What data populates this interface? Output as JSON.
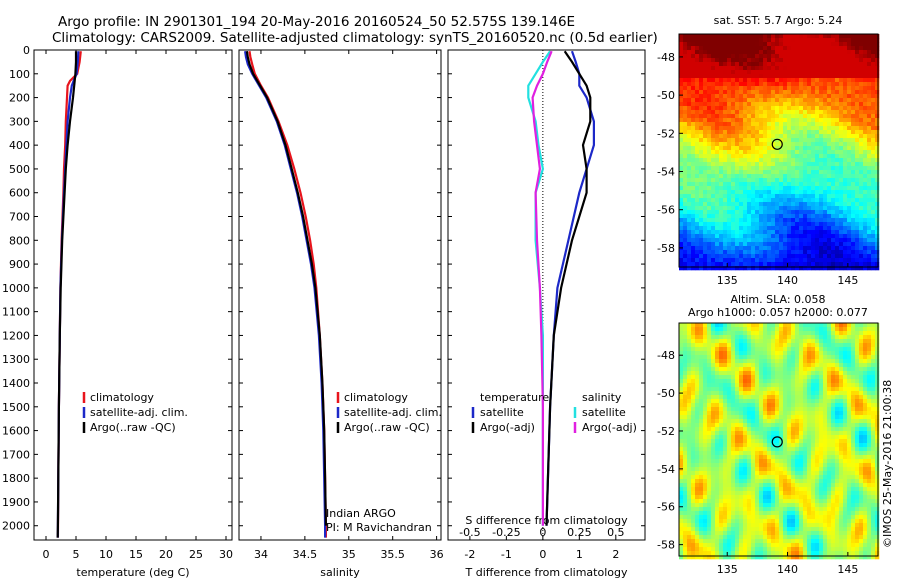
{
  "header": {
    "line1": "Argo profile: IN 2901301_194 20-May-2016 20160524_50 52.575S 139.146E",
    "line2": "Climatology: CARS2009. Satellite-adjusted climatology: synTS_20160520.nc (0.5d earlier)"
  },
  "colors": {
    "climatology": "#e8141c",
    "satellite_adj": "#1c28c8",
    "argo": "#000000",
    "sal_satellite": "#22e0e0",
    "sal_argo": "#e020e0"
  },
  "credit": "©IMOS 25-May-2016 21:00:38",
  "chart_data": [
    {
      "type": "line",
      "panel": "temperature",
      "xlabel": "temperature (deg C)",
      "ylabel": "",
      "xlim": [
        -2,
        31
      ],
      "ylim": [
        2060,
        0
      ],
      "xticks": [
        0,
        5,
        10,
        15,
        20,
        25,
        30
      ],
      "yticks": [
        0,
        100,
        200,
        300,
        400,
        500,
        600,
        700,
        800,
        900,
        1000,
        1100,
        1200,
        1300,
        1400,
        1500,
        1600,
        1700,
        1800,
        1900,
        2000
      ],
      "legend": [
        "climatology",
        "satellite-adj. clim.",
        "Argo(..raw -QC)"
      ],
      "series": [
        {
          "name": "climatology",
          "depth": [
            5,
            50,
            100,
            130,
            150,
            200,
            300,
            400,
            500,
            600,
            800,
            1000,
            1200,
            1500,
            1800,
            2000,
            2050
          ],
          "values": [
            5.8,
            5.6,
            5.2,
            4.0,
            3.6,
            3.5,
            3.3,
            3.2,
            3.0,
            2.9,
            2.6,
            2.4,
            2.3,
            2.15,
            2.05,
            2.0,
            1.98
          ]
        },
        {
          "name": "satellite-adj. clim.",
          "depth": [
            5,
            50,
            100,
            130,
            150,
            200,
            300,
            400,
            500,
            600,
            800,
            1000,
            1200,
            1500,
            1800,
            2000,
            2050
          ],
          "values": [
            5.4,
            5.3,
            5.1,
            4.6,
            4.3,
            4.0,
            3.6,
            3.4,
            3.2,
            3.0,
            2.65,
            2.4,
            2.3,
            2.15,
            2.05,
            1.98,
            1.96
          ]
        },
        {
          "name": "Argo(..raw -QC)",
          "depth": [
            5,
            50,
            100,
            150,
            200,
            300,
            400,
            500,
            600,
            800,
            1000,
            1200,
            1500,
            1800,
            2000,
            2050
          ],
          "values": [
            5.0,
            5.0,
            4.9,
            4.7,
            4.5,
            4.0,
            3.6,
            3.3,
            3.1,
            2.7,
            2.45,
            2.3,
            2.15,
            2.05,
            1.98,
            1.95
          ]
        }
      ]
    },
    {
      "type": "line",
      "panel": "salinity",
      "xlabel": "salinity",
      "xlim": [
        33.75,
        36.05
      ],
      "ylim": [
        2060,
        0
      ],
      "xticks": [
        34,
        34.5,
        35,
        35.5,
        36
      ],
      "legend": [
        "climatology",
        "satellite-adj. clim.",
        "Argo(..raw -QC)"
      ],
      "annotation": [
        "Indian ARGO",
        "PI: M Ravichandran"
      ],
      "series": [
        {
          "name": "climatology",
          "depth": [
            5,
            30,
            60,
            100,
            150,
            200,
            300,
            400,
            500,
            600,
            700,
            800,
            900,
            1000,
            1200,
            1400,
            1600,
            1800,
            2000,
            2050
          ],
          "values": [
            33.87,
            33.88,
            33.9,
            33.93,
            34.0,
            34.08,
            34.2,
            34.3,
            34.38,
            34.45,
            34.51,
            34.56,
            34.6,
            34.63,
            34.67,
            34.7,
            34.72,
            34.73,
            34.74,
            34.74
          ]
        },
        {
          "name": "satellite-adj. clim.",
          "depth": [
            5,
            30,
            60,
            100,
            150,
            200,
            300,
            400,
            500,
            600,
            700,
            800,
            900,
            1000,
            1200,
            1400,
            1600,
            1800,
            2000,
            2050
          ],
          "values": [
            33.82,
            33.83,
            33.85,
            33.9,
            33.98,
            34.06,
            34.18,
            34.27,
            34.34,
            34.41,
            34.47,
            34.52,
            34.57,
            34.61,
            34.66,
            34.69,
            34.71,
            34.72,
            34.73,
            34.73
          ]
        },
        {
          "name": "Argo(..raw -QC)",
          "depth": [
            5,
            30,
            60,
            100,
            150,
            200,
            300,
            400,
            500,
            600,
            700,
            800,
            900,
            1000,
            1200,
            1400,
            1600,
            1800,
            2000
          ],
          "values": [
            33.84,
            33.85,
            33.87,
            33.91,
            33.99,
            34.07,
            34.19,
            34.28,
            34.35,
            34.42,
            34.48,
            34.53,
            34.58,
            34.62,
            34.67,
            34.7,
            34.72,
            34.73,
            34.74
          ]
        }
      ]
    },
    {
      "type": "line",
      "panel": "difference",
      "xlabel": "T difference from climatology",
      "xlabel2": "S difference from climatology",
      "xlim": [
        -2.6,
        2.8
      ],
      "ylim": [
        2060,
        0
      ],
      "xticks": [
        -2,
        -1,
        0,
        1,
        2
      ],
      "xticks_S": [
        -0.5,
        -0.25,
        0,
        0.25,
        0.5
      ],
      "legend_groups": [
        {
          "title": "temperature",
          "items": [
            "satellite",
            "Argo(-adj)"
          ]
        },
        {
          "title": "salinity",
          "items": [
            "satellite",
            "Argo(-adj)"
          ]
        }
      ],
      "series": [
        {
          "name": "T satellite",
          "depth": [
            5,
            50,
            100,
            150,
            200,
            300,
            400,
            500,
            600,
            800,
            1000,
            1200,
            1500,
            2000
          ],
          "values": [
            0.8,
            0.9,
            1.0,
            1.0,
            1.2,
            1.4,
            1.4,
            1.2,
            1.0,
            0.7,
            0.4,
            0.3,
            0.2,
            0.1
          ]
        },
        {
          "name": "T Argo(-adj)",
          "depth": [
            5,
            50,
            100,
            150,
            200,
            300,
            400,
            500,
            600,
            800,
            1000,
            1200,
            1500,
            2000
          ],
          "values": [
            0.6,
            0.8,
            1.0,
            1.2,
            1.3,
            1.3,
            1.1,
            1.2,
            1.2,
            0.8,
            0.5,
            0.3,
            0.2,
            0.1
          ]
        },
        {
          "name": "S satellite",
          "depth": [
            5,
            50,
            100,
            150,
            200,
            300,
            400,
            500,
            600,
            800,
            1000,
            1200,
            1500,
            2000
          ],
          "values": [
            0.05,
            0.0,
            -0.05,
            -0.1,
            -0.1,
            -0.05,
            -0.03,
            0.0,
            -0.05,
            -0.05,
            -0.02,
            0.0,
            0.0,
            0.0
          ]
        },
        {
          "name": "S Argo(-adj)",
          "depth": [
            5,
            50,
            100,
            150,
            200,
            300,
            400,
            500,
            600,
            800,
            1000,
            1200,
            1500,
            2000
          ],
          "values": [
            0.06,
            0.03,
            0.0,
            -0.04,
            -0.07,
            -0.06,
            -0.04,
            -0.02,
            -0.05,
            -0.04,
            -0.02,
            -0.01,
            0.0,
            0.0
          ]
        }
      ]
    },
    {
      "type": "heatmap",
      "panel": "sst_map",
      "title": "sat. SST: 5.7 Argo: 5.24",
      "xlim": [
        131,
        147.5
      ],
      "ylim": [
        -59,
        -46.8
      ],
      "xticks": [
        135,
        140,
        145
      ],
      "yticks": [
        -48,
        -50,
        -52,
        -54,
        -56,
        -58
      ],
      "marker": {
        "lon": 139.146,
        "lat": -52.575
      }
    },
    {
      "type": "heatmap",
      "panel": "sla_map",
      "title": "Altim. SLA: 0.058",
      "subtitle": "Argo h1000: 0.057 h2000: 0.077",
      "xlim": [
        131,
        147.5
      ],
      "ylim": [
        -58.6,
        -46.3
      ],
      "xticks": [
        135,
        140,
        145
      ],
      "yticks": [
        -48,
        -50,
        -52,
        -54,
        -56,
        -58
      ],
      "marker": {
        "lon": 139.146,
        "lat": -52.575
      }
    }
  ]
}
